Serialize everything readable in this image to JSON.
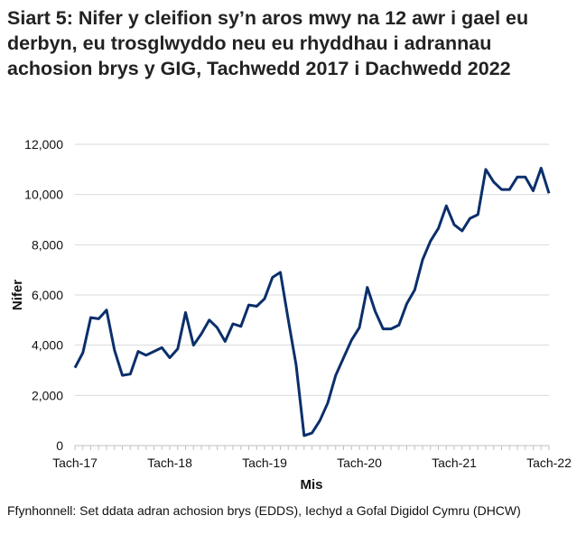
{
  "chart_data": {
    "type": "line",
    "title": "Siart 5: Nifer y cleifion sy’n aros mwy na 12 awr i gael eu derbyn, eu trosglwyddo neu eu rhyddhau i adrannau achosion brys y GIG, Tachwedd 2017 i Dachwedd 2022",
    "xlabel": "Mis",
    "ylabel": "Nifer",
    "ylim": [
      0,
      12000
    ],
    "yticks": [
      "0",
      "2,000",
      "4,000",
      "6,000",
      "8,000",
      "10,000",
      "12,000"
    ],
    "ytick_values": [
      0,
      2000,
      4000,
      6000,
      8000,
      10000,
      12000
    ],
    "xtick_labels": [
      "Tach-17",
      "Tach-18",
      "Tach-19",
      "Tach-20",
      "Tach-21",
      "Tach-22"
    ],
    "xtick_every_months": 12,
    "grid": "horizontal",
    "line_color": "#0b2f6b",
    "values": [
      3100,
      3700,
      5100,
      5050,
      5400,
      3800,
      2800,
      2850,
      3750,
      3600,
      3750,
      3900,
      3500,
      3850,
      5300,
      4000,
      4450,
      5000,
      4700,
      4150,
      4850,
      4750,
      5600,
      5550,
      5850,
      6700,
      6900,
      5000,
      3200,
      400,
      500,
      1000,
      1700,
      2800,
      3500,
      4200,
      4700,
      6300,
      5350,
      4650,
      4650,
      4800,
      5650,
      6200,
      7400,
      8150,
      8650,
      9550,
      8800,
      8550,
      9050,
      9200,
      11000,
      10500,
      10200,
      10200,
      10700,
      10700,
      10150,
      11050,
      10050
    ]
  },
  "source": "Ffynhonnell: Set ddata adran achosion brys (EDDS), Iechyd a Gofal Digidol Cymru (DHCW)"
}
